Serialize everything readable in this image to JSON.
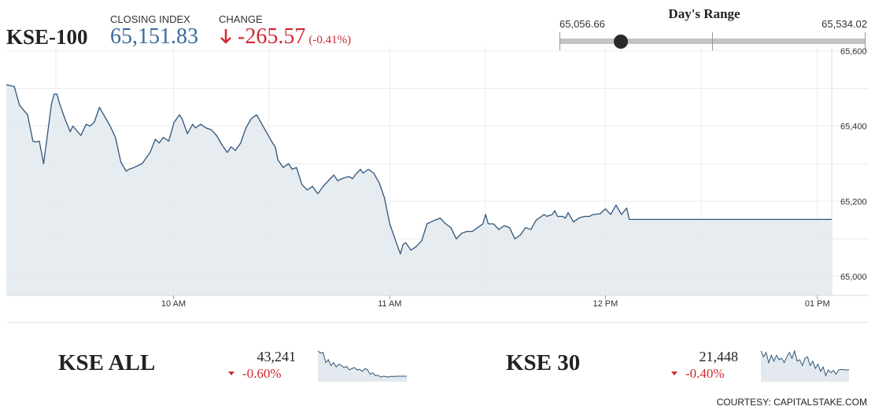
{
  "header": {
    "index_name": "KSE-100",
    "closing_label": "CLOSING INDEX",
    "closing_value": "65,151.83",
    "change_label": "CHANGE",
    "change_value": "-265.57",
    "change_pct": "(-0.41%)",
    "change_direction": "down",
    "colors": {
      "closing": "#3b6aa0",
      "negative": "#d0282f"
    }
  },
  "days_range": {
    "title": "Day's Range",
    "low": "65,056.66",
    "high": "65,534.02",
    "marker_position": 0.2
  },
  "chart_data": {
    "type": "area",
    "x_ticks": [
      "10 AM",
      "11 AM",
      "12 PM",
      "01 PM"
    ],
    "y_ticks": [
      "65,000",
      "65,200",
      "65,400",
      "65,600"
    ],
    "ylim": [
      64950,
      65610
    ],
    "grid": true,
    "points": [
      [
        0,
        65510
      ],
      [
        1.5,
        65505
      ],
      [
        2.5,
        65455
      ],
      [
        4,
        65430
      ],
      [
        5,
        65360
      ],
      [
        5.5,
        65358
      ],
      [
        6.2,
        65360
      ],
      [
        7,
        65300
      ],
      [
        8.5,
        65460
      ],
      [
        9,
        65485
      ],
      [
        9.5,
        65485
      ],
      [
        10,
        65460
      ],
      [
        11,
        65420
      ],
      [
        12,
        65385
      ],
      [
        12.5,
        65400
      ],
      [
        14,
        65375
      ],
      [
        15,
        65405
      ],
      [
        15.7,
        65400
      ],
      [
        16.5,
        65410
      ],
      [
        17.5,
        65450
      ],
      [
        18.5,
        65425
      ],
      [
        19.5,
        65400
      ],
      [
        20.5,
        65370
      ],
      [
        21.5,
        65305
      ],
      [
        22.5,
        65280
      ],
      [
        23,
        65285
      ],
      [
        24,
        65290
      ],
      [
        24.7,
        65295
      ],
      [
        25.5,
        65300
      ],
      [
        27,
        65330
      ],
      [
        28,
        65365
      ],
      [
        28.7,
        65355
      ],
      [
        29.5,
        65370
      ],
      [
        30.5,
        65360
      ],
      [
        31.5,
        65410
      ],
      [
        32.5,
        65430
      ],
      [
        33,
        65420
      ],
      [
        34,
        65380
      ],
      [
        35,
        65405
      ],
      [
        35.5,
        65395
      ],
      [
        36.5,
        65405
      ],
      [
        37.5,
        65395
      ],
      [
        38.5,
        65390
      ],
      [
        39.5,
        65375
      ],
      [
        40.5,
        65350
      ],
      [
        41.5,
        65330
      ],
      [
        42.2,
        65345
      ],
      [
        43,
        65335
      ],
      [
        44,
        65355
      ],
      [
        45,
        65395
      ],
      [
        46,
        65420
      ],
      [
        47,
        65430
      ],
      [
        48,
        65405
      ],
      [
        49,
        65380
      ],
      [
        50,
        65355
      ],
      [
        50.5,
        65345
      ],
      [
        51,
        65310
      ],
      [
        52,
        65290
      ],
      [
        53,
        65300
      ],
      [
        53.7,
        65285
      ],
      [
        54.5,
        65290
      ],
      [
        55.5,
        65245
      ],
      [
        56.5,
        65230
      ],
      [
        57.5,
        65240
      ],
      [
        58.5,
        65220
      ],
      [
        59.5,
        65240
      ],
      [
        60.5,
        65255
      ],
      [
        61.5,
        65270
      ],
      [
        62.2,
        65255
      ],
      [
        63,
        65260
      ],
      [
        64,
        65265
      ],
      [
        64.5,
        65265
      ],
      [
        65,
        65260
      ],
      [
        65.5,
        65270
      ],
      [
        66.5,
        65285
      ],
      [
        67,
        65275
      ],
      [
        68,
        65285
      ],
      [
        69,
        65275
      ],
      [
        70,
        65250
      ],
      [
        71,
        65210
      ],
      [
        72,
        65140
      ],
      [
        73,
        65100
      ],
      [
        74,
        65060
      ],
      [
        74.5,
        65085
      ],
      [
        75,
        65090
      ],
      [
        76,
        65070
      ],
      [
        77,
        65080
      ],
      [
        78,
        65095
      ],
      [
        79,
        65140
      ],
      [
        80.5,
        65150
      ],
      [
        81.5,
        65155
      ],
      [
        82.5,
        65140
      ],
      [
        83.5,
        65130
      ],
      [
        84.5,
        65100
      ],
      [
        85.5,
        65115
      ],
      [
        86.5,
        65120
      ],
      [
        87.5,
        65120
      ],
      [
        88.5,
        65130
      ],
      [
        89.5,
        65140
      ],
      [
        90,
        65165
      ],
      [
        90.5,
        65140
      ],
      [
        91.5,
        65140
      ],
      [
        92.5,
        65125
      ],
      [
        93.5,
        65135
      ],
      [
        94.5,
        65130
      ],
      [
        95.5,
        65100
      ],
      [
        96.5,
        65110
      ],
      [
        97.5,
        65130
      ],
      [
        98.5,
        65125
      ],
      [
        99.5,
        65150
      ],
      [
        100.5,
        65160
      ],
      [
        101,
        65165
      ],
      [
        101.5,
        65160
      ],
      [
        102.5,
        65165
      ],
      [
        103,
        65175
      ],
      [
        103.5,
        65160
      ],
      [
        104,
        65160
      ],
      [
        104.5,
        65160
      ],
      [
        105,
        65155
      ],
      [
        105.5,
        65170
      ],
      [
        106.5,
        65145
      ],
      [
        107,
        65150
      ],
      [
        107.5,
        65155
      ],
      [
        108.5,
        65160
      ],
      [
        109.5,
        65160
      ],
      [
        110.2,
        65165
      ],
      [
        111.5,
        65167
      ],
      [
        112.5,
        65180
      ],
      [
        113.5,
        65165
      ],
      [
        114.5,
        65190
      ],
      [
        115.5,
        65165
      ],
      [
        116.5,
        65182
      ],
      [
        117,
        65151.83
      ],
      [
        123,
        65151.83
      ],
      [
        130,
        65151.83
      ],
      [
        137,
        65151.83
      ],
      [
        143,
        65151.83
      ],
      [
        150,
        65151.83
      ],
      [
        155,
        65151.83
      ]
    ]
  },
  "sub_indices": [
    {
      "name": "KSE ALL",
      "value": "43,241",
      "change": "-0.60%",
      "spark": [
        0.05,
        0.12,
        0.1,
        0.45,
        0.35,
        0.55,
        0.45,
        0.6,
        0.5,
        0.55,
        0.62,
        0.58,
        0.7,
        0.65,
        0.62,
        0.7,
        0.68,
        0.75,
        0.65,
        0.7,
        0.85,
        0.8,
        0.9,
        0.88,
        0.95,
        0.92,
        0.93,
        0.95,
        0.92,
        0.93,
        0.92,
        0.92,
        0.92,
        0.92,
        0.92
      ]
    },
    {
      "name": "KSE 30",
      "value": "21,448",
      "change": "-0.40%",
      "spark": [
        0.05,
        0.25,
        0.1,
        0.45,
        0.2,
        0.4,
        0.2,
        0.35,
        0.3,
        0.45,
        0.25,
        0.1,
        0.3,
        0.05,
        0.4,
        0.35,
        0.55,
        0.3,
        0.25,
        0.55,
        0.4,
        0.65,
        0.5,
        0.75,
        0.6,
        0.9,
        0.7,
        0.8,
        0.72,
        0.85,
        0.7,
        0.68,
        0.7,
        0.7,
        0.7
      ]
    }
  ],
  "credit": "COURTESY: CAPITALSTAKE.COM"
}
